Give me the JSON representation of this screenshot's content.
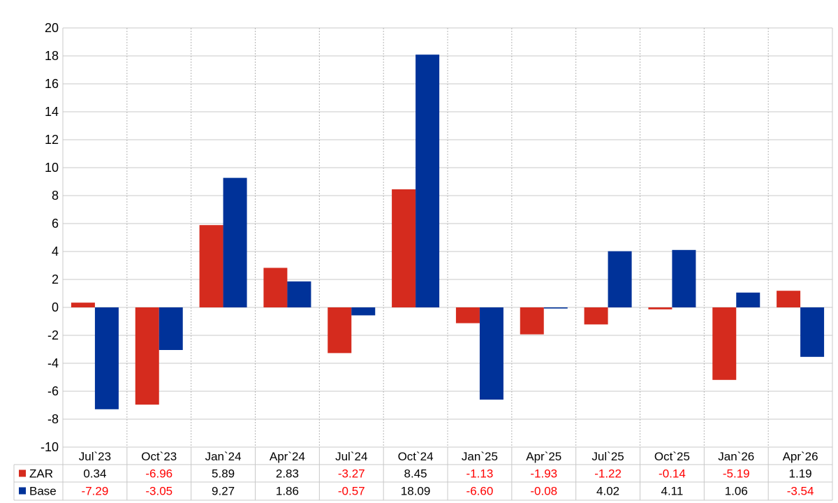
{
  "chart_data": {
    "type": "bar",
    "title": "",
    "xlabel": "",
    "ylabel": "",
    "ylim": [
      -10,
      20
    ],
    "yticks": [
      -10,
      -8,
      -6,
      -4,
      -2,
      0,
      2,
      4,
      6,
      8,
      10,
      12,
      14,
      16,
      18,
      20
    ],
    "ytick_labels": [
      "-10",
      "-8",
      "-6",
      "-4",
      "-2",
      "0",
      "2",
      "4",
      "6",
      "8",
      "10",
      "12",
      "14",
      "16",
      "18",
      "20"
    ],
    "grid": true,
    "legend_placement": "table-below",
    "categories": [
      "Jul`23",
      "Oct`23",
      "Jan`24",
      "Apr`24",
      "Jul`24",
      "Oct`24",
      "Jan`25",
      "Apr`25",
      "Jul`25",
      "Oct`25",
      "Jan`26",
      "Apr`26"
    ],
    "series": [
      {
        "name": "ZAR",
        "color": "#d52b1e",
        "values": [
          0.34,
          -6.96,
          5.89,
          2.83,
          -3.27,
          8.45,
          -1.13,
          -1.93,
          -1.22,
          -0.14,
          -5.19,
          1.19
        ],
        "labels": [
          "0.34",
          "-6.96",
          "5.89",
          "2.83",
          "-3.27",
          "8.45",
          "-1.13",
          "-1.93",
          "-1.22",
          "-0.14",
          "-5.19",
          "1.19"
        ]
      },
      {
        "name": "Base",
        "color": "#003299",
        "values": [
          -7.29,
          -3.05,
          9.27,
          1.86,
          -0.57,
          18.09,
          -6.6,
          -0.08,
          4.02,
          4.11,
          1.06,
          -3.54
        ],
        "labels": [
          "-7.29",
          "-3.05",
          "9.27",
          "1.86",
          "-0.57",
          "18.09",
          "-6.60",
          "-0.08",
          "4.02",
          "4.11",
          "1.06",
          "-3.54"
        ]
      }
    ],
    "negative_value_color": "#ff0000",
    "positive_value_color": "#000000"
  }
}
